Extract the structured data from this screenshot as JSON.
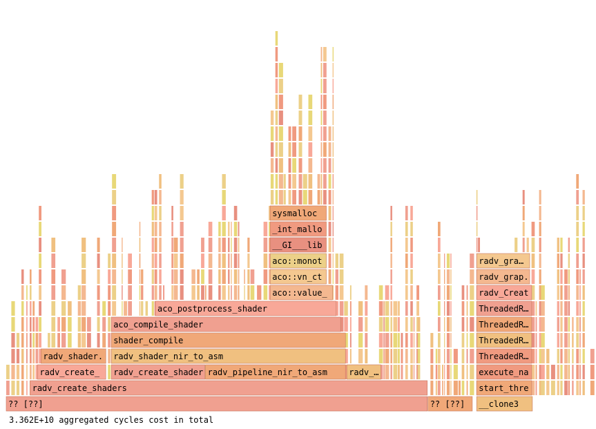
{
  "chart_data": {
    "type": "flamegraph",
    "unit": "cycles",
    "total_label": "3.362E+10 aggregated cycles cost in total",
    "frames": [
      {
        "name": "?? [??]",
        "depth": 0,
        "start": 0.0,
        "end": 0.7176
      },
      {
        "name": "?? [??]",
        "depth": 0,
        "start": 0.7176,
        "end": 0.7942
      },
      {
        "name": "__clone3",
        "depth": 0,
        "start": 0.8005,
        "end": 0.8965
      },
      {
        "name": "radv_create_shaders",
        "depth": 1,
        "start": 0.0406,
        "end": 0.7176
      },
      {
        "name": "start_threa",
        "depth": 1,
        "start": 0.8005,
        "end": 0.8953
      },
      {
        "name": "radv_create_",
        "depth": 2,
        "start": 0.0534,
        "end": 0.1707
      },
      {
        "name": "radv_create_shaders",
        "depth": 2,
        "start": 0.1788,
        "end": 0.3391
      },
      {
        "name": "radv_pipeline_nir_to_asm",
        "depth": 2,
        "start": 0.3391,
        "end": 0.5783
      },
      {
        "name": "radv_…",
        "depth": 2,
        "start": 0.5795,
        "end": 0.6384
      },
      {
        "name": "execute_na.",
        "depth": 2,
        "start": 0.8005,
        "end": 0.8953
      },
      {
        "name": "radv_shader.",
        "depth": 3,
        "start": 0.0592,
        "end": 0.1707
      },
      {
        "name": "radv_shader_nir_to_asm",
        "depth": 3,
        "start": 0.1788,
        "end": 0.5783
      },
      {
        "name": "ThreadedR…",
        "depth": 3,
        "start": 0.8005,
        "end": 0.8953
      },
      {
        "name": "shader_compile",
        "depth": 4,
        "start": 0.1788,
        "end": 0.5783
      },
      {
        "name": "ThreadedR…",
        "depth": 4,
        "start": 0.8005,
        "end": 0.8953
      },
      {
        "name": "aco_compile_shader",
        "depth": 5,
        "start": 0.1788,
        "end": 0.5701
      },
      {
        "name": "ThreadedR…",
        "depth": 5,
        "start": 0.8005,
        "end": 0.8953
      },
      {
        "name": "aco_postprocess_shader",
        "depth": 6,
        "start": 0.2538,
        "end": 0.5626
      },
      {
        "name": "ThreadedR…",
        "depth": 6,
        "start": 0.8005,
        "end": 0.8953
      },
      {
        "name": "aco::value_n",
        "depth": 7,
        "start": 0.4491,
        "end": 0.5562
      },
      {
        "name": "radv_Creat.",
        "depth": 7,
        "start": 0.8005,
        "end": 0.8953
      },
      {
        "name": "aco::vn_ctx",
        "depth": 8,
        "start": 0.4491,
        "end": 0.5457
      },
      {
        "name": "radv_grap.",
        "depth": 8,
        "start": 0.8005,
        "end": 0.8919
      },
      {
        "name": "aco::monot…",
        "depth": 9,
        "start": 0.4491,
        "end": 0.5457
      },
      {
        "name": "radv_gra…",
        "depth": 9,
        "start": 0.8005,
        "end": 0.8919
      },
      {
        "name": "__GI___libc",
        "depth": 10,
        "start": 0.4491,
        "end": 0.5457
      },
      {
        "name": "_int_malloc",
        "depth": 11,
        "start": 0.4491,
        "end": 0.5457
      },
      {
        "name": "sysmalloc",
        "depth": 12,
        "start": 0.4491,
        "end": 0.5457
      }
    ]
  }
}
